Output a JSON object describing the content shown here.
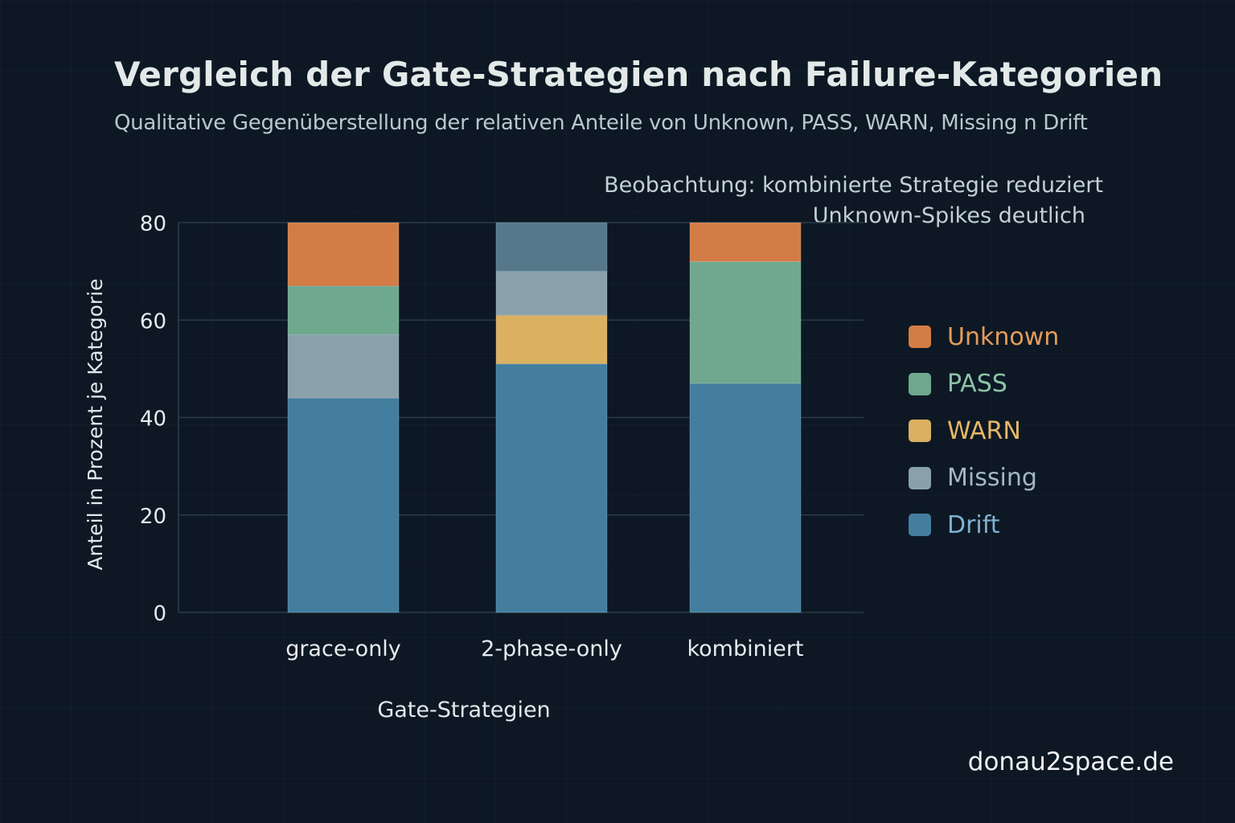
{
  "title": "Vergleich der Gate-Strategien nach Failure-Kategorien",
  "subtitle": "Qualitative Gegenüberstellung der relativen Anteile von Unknown, PASS, WARN, Missing n Drift",
  "annotation": {
    "line1": "Beobachtung: kombinierte Strategie reduziert",
    "line2": "Unknown-Spikes deutlich"
  },
  "watermark": "donau2space.de",
  "colors": {
    "Unknown": "#d47c45",
    "PASS": "#6fa88e",
    "WARN": "#dbb060",
    "Missing": "#8aa1ab",
    "Drift": "#437e9e",
    "Drift-muted": "#55798b"
  },
  "legend": [
    {
      "label": "Unknown",
      "color": "#d47c45",
      "text_color": "#e49c5a"
    },
    {
      "label": "PASS",
      "color": "#6fa88e",
      "text_color": "#8dc3a8"
    },
    {
      "label": "WARN",
      "color": "#dbb060",
      "text_color": "#e6b765"
    },
    {
      "label": "Missing",
      "color": "#8aa1ab",
      "text_color": "#a3b8c2"
    },
    {
      "label": "Drift",
      "color": "#437e9e",
      "text_color": "#7fb0d0"
    }
  ],
  "chart_data": {
    "type": "bar",
    "stacked": true,
    "title": "Vergleich der Gate-Strategien nach Failure-Kategorien",
    "subtitle": "Qualitative Gegenüberstellung der relativen Anteile von Unknown, PASS, WARN, Missing n Drift",
    "xlabel": "Gate-Strategien",
    "ylabel": "Anteil in Prozent je Kategorie",
    "ylim": [
      0,
      80
    ],
    "yticks": [
      0,
      20,
      40,
      60,
      80
    ],
    "grid": true,
    "legend_position": "right",
    "categories": [
      "grace-only",
      "2-phase-only",
      "kombiniert"
    ],
    "stacks": [
      {
        "category": "grace-only",
        "segments": [
          {
            "name": "Drift",
            "value": 44,
            "color": "#437e9e"
          },
          {
            "name": "Missing",
            "value": 13,
            "color": "#8aa1ab"
          },
          {
            "name": "PASS",
            "value": 10,
            "color": "#6fa88e"
          },
          {
            "name": "Unknown",
            "value": 13,
            "color": "#d47c45"
          }
        ]
      },
      {
        "category": "2-phase-only",
        "segments": [
          {
            "name": "Drift",
            "value": 51,
            "color": "#437e9e"
          },
          {
            "name": "WARN",
            "value": 10,
            "color": "#dbb060"
          },
          {
            "name": "Missing",
            "value": 9,
            "color": "#8aa1ab"
          },
          {
            "name": "Drift (muted)",
            "value": 10,
            "color": "#55798b"
          }
        ]
      },
      {
        "category": "kombiniert",
        "segments": [
          {
            "name": "Drift",
            "value": 47,
            "color": "#437e9e"
          },
          {
            "name": "PASS",
            "value": 25,
            "color": "#6fa88e"
          },
          {
            "name": "Unknown",
            "value": 8,
            "color": "#d47c45"
          }
        ]
      }
    ],
    "annotation": "Beobachtung: kombinierte Strategie reduziert Unknown-Spikes deutlich"
  }
}
